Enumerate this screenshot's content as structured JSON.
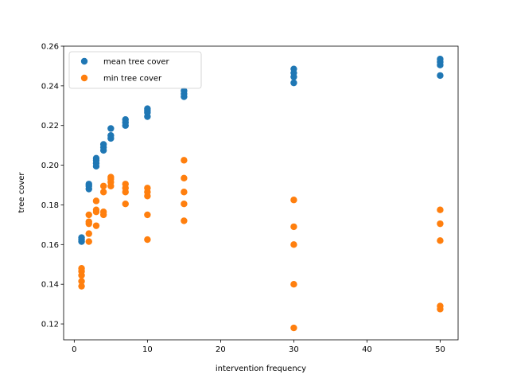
{
  "chart_data": {
    "type": "scatter",
    "title": "",
    "xlabel": "intervention frequency",
    "ylabel": "tree cover",
    "xlim": [
      -1.45,
      52.45
    ],
    "ylim": [
      0.112,
      0.26
    ],
    "xticks": [
      0,
      10,
      20,
      30,
      40,
      50
    ],
    "yticks": [
      0.12,
      0.14,
      0.16,
      0.18,
      0.2,
      0.22,
      0.24,
      0.26
    ],
    "ytick_labels": [
      "0.12",
      "0.14",
      "0.16",
      "0.18",
      "0.20",
      "0.22",
      "0.24",
      "0.26"
    ],
    "grid": false,
    "legend_position": "top-left",
    "series": [
      {
        "name": "mean tree cover",
        "color": "#1f77b4",
        "points": [
          [
            1,
            0.1615
          ],
          [
            1,
            0.1625
          ],
          [
            1,
            0.1635
          ],
          [
            2,
            0.188
          ],
          [
            2,
            0.1895
          ],
          [
            2,
            0.1905
          ],
          [
            3,
            0.1995
          ],
          [
            3,
            0.201
          ],
          [
            3,
            0.2025
          ],
          [
            3,
            0.2035
          ],
          [
            4,
            0.2075
          ],
          [
            4,
            0.209
          ],
          [
            4,
            0.2105
          ],
          [
            5,
            0.2135
          ],
          [
            5,
            0.215
          ],
          [
            5,
            0.2185
          ],
          [
            7,
            0.22
          ],
          [
            7,
            0.2215
          ],
          [
            7,
            0.223
          ],
          [
            10,
            0.2245
          ],
          [
            10,
            0.2265
          ],
          [
            10,
            0.2275
          ],
          [
            10,
            0.2285
          ],
          [
            15,
            0.2345
          ],
          [
            15,
            0.236
          ],
          [
            15,
            0.2375
          ],
          [
            30,
            0.2415
          ],
          [
            30,
            0.2445
          ],
          [
            30,
            0.2465
          ],
          [
            30,
            0.2485
          ],
          [
            50,
            0.2452
          ],
          [
            50,
            0.2505
          ],
          [
            50,
            0.252
          ],
          [
            50,
            0.2535
          ]
        ]
      },
      {
        "name": "min tree cover",
        "color": "#ff7f0e",
        "points": [
          [
            1,
            0.139
          ],
          [
            1,
            0.1415
          ],
          [
            1,
            0.1445
          ],
          [
            1,
            0.1465
          ],
          [
            1,
            0.148
          ],
          [
            2,
            0.1615
          ],
          [
            2,
            0.1655
          ],
          [
            2,
            0.1705
          ],
          [
            2,
            0.1715
          ],
          [
            2,
            0.175
          ],
          [
            3,
            0.1695
          ],
          [
            3,
            0.1765
          ],
          [
            3,
            0.1775
          ],
          [
            3,
            0.182
          ],
          [
            4,
            0.175
          ],
          [
            4,
            0.1765
          ],
          [
            4,
            0.1865
          ],
          [
            4,
            0.1895
          ],
          [
            5,
            0.1895
          ],
          [
            5,
            0.1915
          ],
          [
            5,
            0.193
          ],
          [
            5,
            0.194
          ],
          [
            7,
            0.1805
          ],
          [
            7,
            0.1865
          ],
          [
            7,
            0.1885
          ],
          [
            7,
            0.1905
          ],
          [
            10,
            0.1625
          ],
          [
            10,
            0.175
          ],
          [
            10,
            0.1845
          ],
          [
            10,
            0.1865
          ],
          [
            10,
            0.1885
          ],
          [
            15,
            0.172
          ],
          [
            15,
            0.1805
          ],
          [
            15,
            0.1865
          ],
          [
            15,
            0.1935
          ],
          [
            15,
            0.2025
          ],
          [
            30,
            0.118
          ],
          [
            30,
            0.14
          ],
          [
            30,
            0.16
          ],
          [
            30,
            0.169
          ],
          [
            30,
            0.1825
          ],
          [
            50,
            0.1275
          ],
          [
            50,
            0.129
          ],
          [
            50,
            0.162
          ],
          [
            50,
            0.1705
          ],
          [
            50,
            0.1775
          ]
        ]
      }
    ]
  }
}
